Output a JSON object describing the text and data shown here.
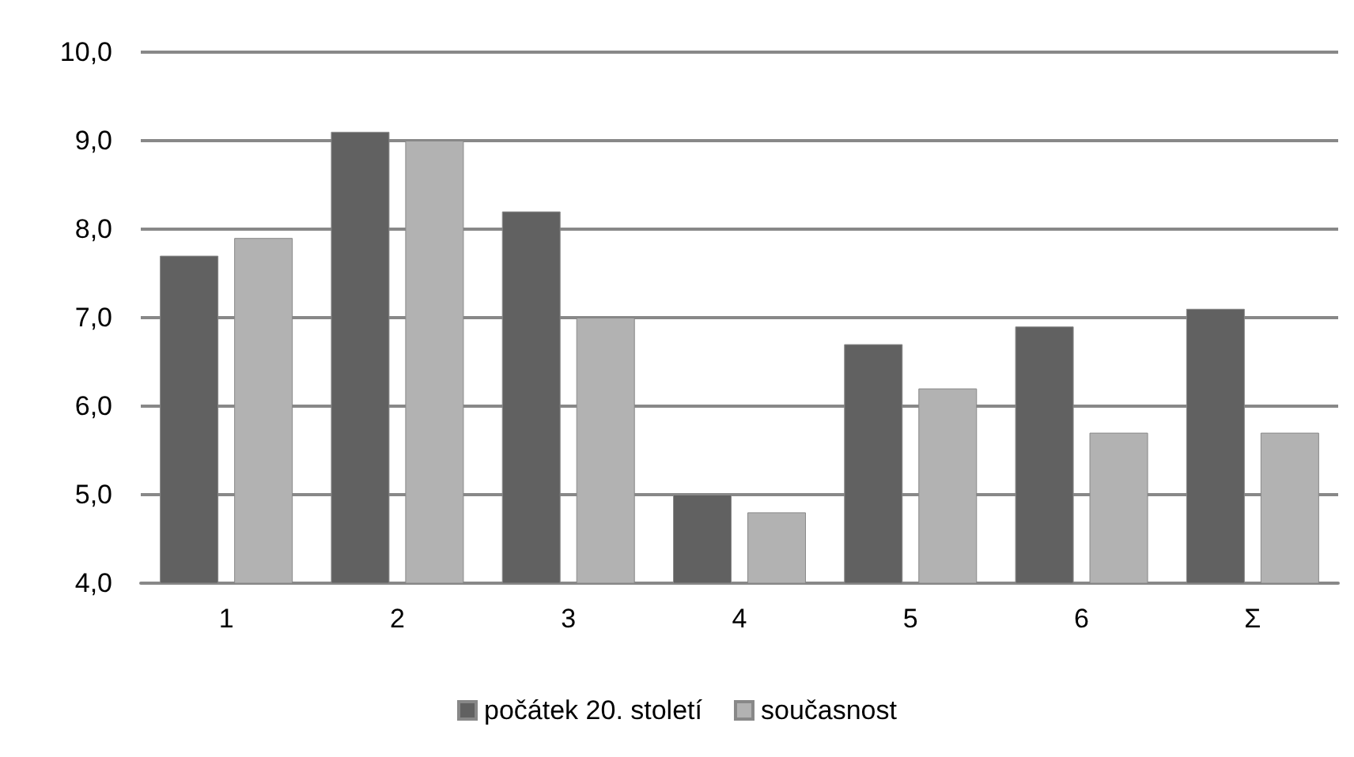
{
  "chart_data": {
    "type": "bar",
    "categories": [
      "1",
      "2",
      "3",
      "4",
      "5",
      "6",
      "Σ"
    ],
    "series": [
      {
        "name": "počátek 20. století",
        "color": "#616161",
        "values": [
          7.7,
          9.1,
          8.2,
          5.0,
          6.7,
          6.9,
          7.1
        ]
      },
      {
        "name": "současnost",
        "color": "#b2b2b2",
        "values": [
          7.9,
          9.0,
          7.0,
          4.8,
          6.2,
          5.7,
          5.7
        ]
      }
    ],
    "ylim": [
      4,
      10
    ],
    "yticks": [
      {
        "value": 4,
        "label": "4,0"
      },
      {
        "value": 5,
        "label": "5,0"
      },
      {
        "value": 6,
        "label": "6,0"
      },
      {
        "value": 7,
        "label": "7,0"
      },
      {
        "value": 8,
        "label": "8,0"
      },
      {
        "value": 9,
        "label": "9,0"
      },
      {
        "value": 10,
        "label": "10,0"
      }
    ],
    "grid": "y",
    "legend": "bottom"
  }
}
